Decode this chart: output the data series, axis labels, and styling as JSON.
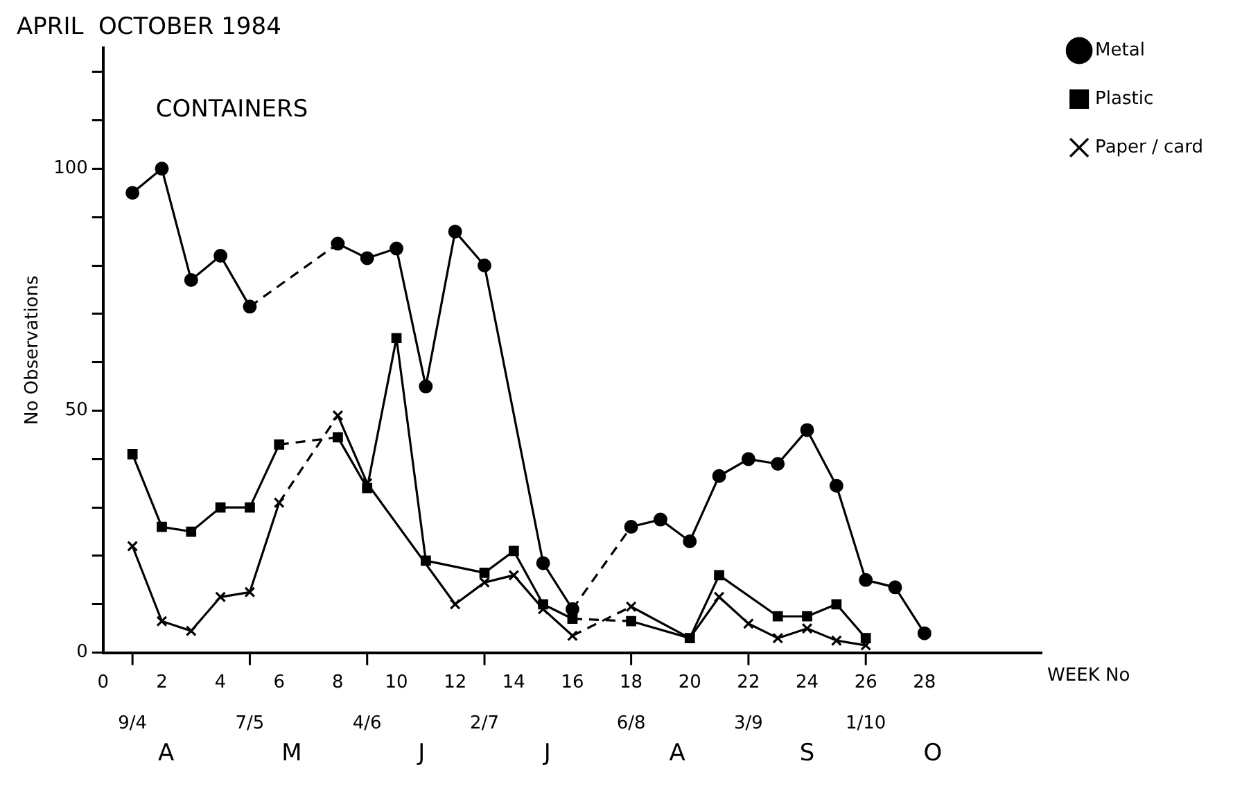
{
  "chart_data": {
    "type": "line",
    "title": "APRIL  OCTOBER 1984",
    "subtitle": "CONTAINERS",
    "xlabel": "WEEK No",
    "ylabel": "No Observations",
    "xlim": [
      0,
      32
    ],
    "xticks": [
      0,
      2,
      4,
      6,
      8,
      10,
      12,
      14,
      16,
      18,
      20,
      22,
      24,
      26,
      28
    ],
    "x2lim": [
      "1984-04-02",
      "1984-11-12"
    ],
    "x2ticks": [
      {
        "value": "1984-04-09",
        "label": "9/4"
      },
      {
        "value": "1984-05-07",
        "label": "7/5"
      },
      {
        "value": "1984-06-04",
        "label": "4/6"
      },
      {
        "value": "1984-07-02",
        "label": "2/7"
      },
      {
        "value": "1984-08-06",
        "label": "6/8"
      },
      {
        "value": "1984-09-03",
        "label": "3/9"
      },
      {
        "value": "1984-10-01",
        "label": "1/10"
      }
    ],
    "annotations": [
      "A",
      "M",
      "J",
      "J",
      "A",
      "S",
      "O"
    ],
    "ylim": [
      0,
      125
    ],
    "yticks": [
      0,
      {
        "value": 10,
        "label": null
      },
      {
        "value": 20,
        "label": null
      },
      {
        "value": 30,
        "label": null
      },
      {
        "value": 40,
        "label": null
      },
      50,
      {
        "value": 60,
        "label": null
      },
      {
        "value": 70,
        "label": null
      },
      {
        "value": 80,
        "label": null
      },
      {
        "value": 90,
        "label": null
      },
      100,
      {
        "value": 110,
        "label": null
      },
      {
        "value": 120,
        "label": null
      }
    ],
    "legend": "top right",
    "line_style": "solid",
    "series": [
      {
        "name": "Metal",
        "color": "#000000",
        "marker": "circle",
        "x": [
          1,
          2,
          3,
          4,
          5,
          6,
          8,
          9,
          10,
          11,
          12,
          13,
          15,
          16,
          17,
          18,
          19,
          20,
          21,
          22,
          23,
          24,
          25,
          26,
          27,
          28
        ],
        "values": [
          95,
          100,
          77,
          82,
          71.5,
          null,
          84.5,
          81.5,
          83.5,
          55,
          87,
          80,
          18.5,
          9,
          null,
          26,
          27.5,
          23,
          36.5,
          40,
          39,
          46,
          34.5,
          15,
          13.5,
          4
        ]
      },
      {
        "name": "Plastic",
        "color": "#000000",
        "marker": "square",
        "x": [
          1,
          2,
          3,
          4,
          5,
          6,
          7,
          8,
          9,
          10,
          11,
          13,
          14,
          15,
          16,
          17,
          18,
          20,
          21,
          23,
          24,
          25,
          26
        ],
        "values": [
          41,
          26,
          25,
          30,
          30,
          43,
          null,
          44.5,
          34,
          65,
          19,
          16.5,
          21,
          10,
          7,
          null,
          6.5,
          3,
          16,
          7.5,
          7.5,
          10,
          3
        ]
      },
      {
        "name": "Paper / card",
        "color": "#000000",
        "marker": "cross",
        "x": [
          1,
          2,
          3,
          4,
          5,
          6,
          7,
          8,
          9,
          12,
          13,
          14,
          15,
          16,
          17,
          18,
          20,
          21,
          22,
          23,
          24,
          25,
          26
        ],
        "values": [
          22,
          6.5,
          4.5,
          11.5,
          12.5,
          31,
          null,
          49,
          35,
          10,
          14.5,
          16,
          9,
          3.5,
          null,
          9.5,
          3,
          11.5,
          6,
          3,
          5,
          2.5,
          1.5
        ]
      }
    ]
  }
}
